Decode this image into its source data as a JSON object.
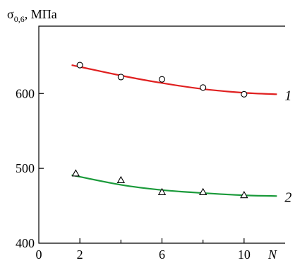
{
  "chart_data": {
    "type": "scatter",
    "title": "",
    "ylabel": {
      "symbol": "σ",
      "subscript": "0,6",
      "unit": ", МПа"
    },
    "xlabel": "N",
    "xlim": [
      0,
      12
    ],
    "ylim": [
      400,
      690
    ],
    "x_ticks": [
      0,
      2,
      6,
      10
    ],
    "x_minor_ticks": [
      4,
      8
    ],
    "y_ticks": [
      400,
      500,
      600
    ],
    "grid": false,
    "series": [
      {
        "label": "1",
        "marker": "circle",
        "fit_color": "#e02020",
        "x": [
          2,
          4,
          6,
          8,
          10
        ],
        "y": [
          638,
          622,
          619,
          608,
          599
        ],
        "fit": {
          "x": [
            1.6,
            4,
            6,
            8,
            10,
            11.6
          ],
          "y": [
            638,
            624,
            614,
            606,
            601,
            599
          ]
        }
      },
      {
        "label": "2",
        "marker": "triangle",
        "fit_color": "#1a9a3a",
        "x": [
          1.8,
          4,
          6,
          8,
          10
        ],
        "y": [
          493,
          484,
          468,
          468,
          464
        ],
        "fit": {
          "x": [
            1.6,
            4,
            6,
            8,
            10,
            11.6
          ],
          "y": [
            491,
            478,
            471,
            467,
            464,
            463
          ]
        }
      }
    ]
  }
}
